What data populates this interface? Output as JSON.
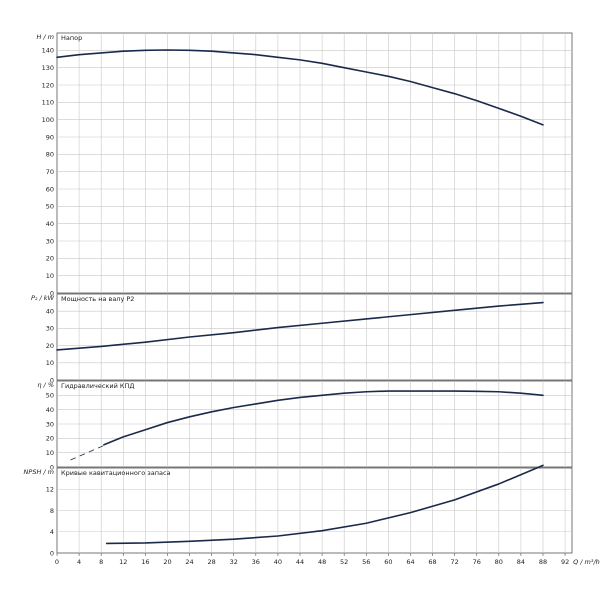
{
  "chart_data": [
    {
      "type": "line",
      "title": "Напор",
      "ylabel": "H / m",
      "ylim": [
        0,
        150
      ],
      "yticks": [
        0,
        10,
        20,
        30,
        40,
        50,
        60,
        70,
        80,
        90,
        100,
        110,
        120,
        130,
        140
      ],
      "grid": true,
      "series": [
        {
          "x": [
            0,
            4,
            8,
            12,
            16,
            20,
            24,
            28,
            32,
            36,
            40,
            44,
            48,
            52,
            56,
            60,
            64,
            68,
            72,
            76,
            80,
            84,
            88
          ],
          "y": [
            136,
            137.5,
            138.5,
            139.5,
            140,
            140.2,
            140,
            139.5,
            138.5,
            137.5,
            136,
            134.5,
            132.5,
            130,
            127.5,
            125,
            122,
            118.5,
            115,
            111,
            106.5,
            102,
            97
          ]
        }
      ]
    },
    {
      "type": "line",
      "title": "Мощность на валу P2",
      "ylabel": "P₂ / kW",
      "ylim": [
        0,
        50
      ],
      "yticks": [
        0,
        10,
        20,
        30,
        40
      ],
      "grid": true,
      "series": [
        {
          "x": [
            0,
            8,
            16,
            24,
            32,
            40,
            48,
            56,
            64,
            72,
            80,
            88
          ],
          "y": [
            17.5,
            19.5,
            22,
            25,
            27.5,
            30.5,
            33,
            35.5,
            38,
            40.5,
            43,
            45
          ]
        }
      ]
    },
    {
      "type": "line",
      "title": "Гидравлический КПД",
      "ylabel": "η / %",
      "ylim": [
        0,
        60
      ],
      "yticks": [
        0,
        10,
        20,
        30,
        40,
        50
      ],
      "grid": true,
      "series": [
        {
          "style": "dashed",
          "x": [
            2.5,
            8.5
          ],
          "y": [
            5,
            15
          ]
        },
        {
          "x": [
            8.5,
            12,
            16,
            20,
            24,
            28,
            32,
            36,
            40,
            44,
            48,
            52,
            56,
            60,
            64,
            68,
            72,
            76,
            80,
            84,
            88
          ],
          "y": [
            15.5,
            21,
            26,
            31,
            35,
            38.5,
            41.5,
            44,
            46.5,
            48.5,
            50,
            51.5,
            52.5,
            53,
            53,
            53,
            53,
            52.8,
            52.5,
            51.5,
            50
          ]
        }
      ]
    },
    {
      "type": "line",
      "title": "Кривые кавитационного запаса",
      "ylabel": "NPSH / m",
      "xlabel": "Q / m³/h",
      "ylim": [
        0,
        16
      ],
      "yticks": [
        0,
        4,
        8,
        12
      ],
      "xticks": [
        0,
        4,
        8,
        12,
        16,
        20,
        24,
        28,
        32,
        36,
        40,
        44,
        48,
        52,
        56,
        60,
        64,
        68,
        72,
        76,
        80,
        84,
        88,
        92
      ],
      "xlim": [
        0,
        96
      ],
      "grid": true,
      "series": [
        {
          "x": [
            9,
            16,
            24,
            32,
            40,
            48,
            56,
            64,
            72,
            80,
            88
          ],
          "y": [
            1.8,
            1.9,
            2.2,
            2.6,
            3.2,
            4.2,
            5.6,
            7.6,
            10,
            13,
            16.5
          ]
        }
      ]
    }
  ]
}
